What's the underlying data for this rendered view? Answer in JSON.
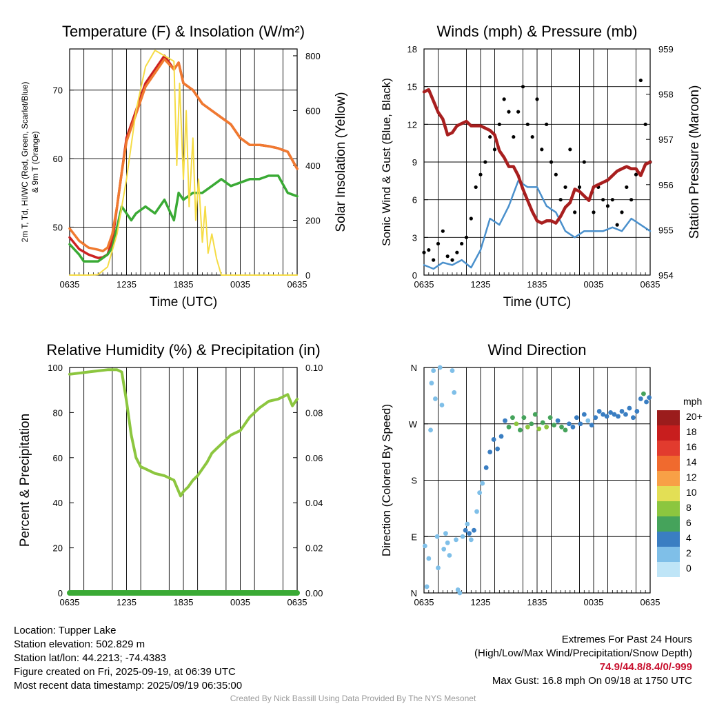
{
  "chart_data": [
    {
      "id": "temp",
      "type": "line",
      "title": "Temperature (F) & Insolation (W/m²)",
      "xlabel": "Time (UTC)",
      "ylabel": "2m T, Td, HI/WC (Red, Green, Scarlet/Blue) & 9m T (Orange)",
      "ylabel_line1": "2m T, Td, HI/WC (Red, Green, Scarlet/Blue)",
      "ylabel_line2": "& 9m T (Orange)",
      "y2label": "Solar Insolation (Yellow)",
      "xticks": [
        "0635",
        "1235",
        "1835",
        "0035",
        "0635"
      ],
      "xlim": [
        0,
        24
      ],
      "ylim": [
        43,
        76
      ],
      "yticks": [
        50,
        60,
        70
      ],
      "y2lim": [
        0,
        825
      ],
      "y2ticks": [
        0,
        200,
        400,
        600,
        800
      ],
      "series": [
        {
          "name": "2m T",
          "color": "#cc2222",
          "axis": "left",
          "x": [
            0,
            1,
            2,
            3,
            3.5,
            4,
            4.5,
            5,
            5.5,
            6,
            7,
            8,
            9,
            10,
            11,
            11.5,
            12,
            13,
            14,
            15,
            16,
            17,
            18,
            19,
            20,
            21,
            22,
            23,
            24
          ],
          "y": [
            48.5,
            46.8,
            46,
            45.5,
            45.6,
            46,
            48,
            53,
            58,
            63,
            67,
            71,
            73,
            75,
            73,
            74,
            71,
            70,
            68,
            67,
            66,
            65,
            63,
            62,
            62,
            61.8,
            61.5,
            61,
            58.5
          ]
        },
        {
          "name": "9m T",
          "color": "#f07a30",
          "axis": "left",
          "x": [
            0,
            1,
            2,
            3,
            3.5,
            4,
            4.5,
            5,
            5.5,
            6,
            7,
            8,
            9,
            10,
            11,
            11.5,
            12,
            13,
            14,
            15,
            16,
            17,
            18,
            19,
            20,
            21,
            22,
            23,
            24
          ],
          "y": [
            49.8,
            48,
            47,
            46.7,
            46.5,
            47,
            49,
            53,
            58,
            62.5,
            66.5,
            70.5,
            72.5,
            74.5,
            73,
            74,
            71,
            70,
            68,
            67,
            66,
            65,
            63,
            62,
            62,
            61.8,
            61.5,
            61,
            58.5
          ]
        },
        {
          "name": "2m Td",
          "color": "#3aaa35",
          "axis": "left",
          "x": [
            0,
            1,
            1.5,
            2,
            3,
            4,
            4.5,
            5,
            5.5,
            6,
            6.5,
            7,
            8,
            9,
            10,
            11,
            11.5,
            12,
            13,
            14,
            15,
            16,
            17,
            18,
            19,
            20,
            21,
            22,
            23,
            24
          ],
          "y": [
            47.5,
            46,
            45,
            45,
            45,
            46,
            47,
            50,
            53,
            52,
            51,
            52,
            53,
            52,
            54,
            51,
            55,
            54,
            55,
            55,
            56,
            57,
            56,
            56.5,
            57,
            57,
            57.5,
            57.5,
            55,
            54.5
          ]
        },
        {
          "name": "Solar Insolation",
          "color": "#f5dc45",
          "axis": "right",
          "x": [
            0,
            2,
            3,
            4,
            5,
            6,
            7,
            8,
            9,
            10,
            11,
            11.3,
            11.6,
            12,
            12.3,
            12.6,
            13,
            13.3,
            13.6,
            14,
            14.3,
            14.6,
            15,
            15.5,
            16,
            17,
            24
          ],
          "y": [
            0,
            0,
            2,
            30,
            150,
            350,
            600,
            760,
            820,
            800,
            780,
            400,
            700,
            350,
            600,
            250,
            500,
            200,
            350,
            120,
            250,
            80,
            150,
            60,
            0,
            0,
            0
          ]
        }
      ]
    },
    {
      "id": "wind",
      "type": "line",
      "title": "Winds (mph) & Pressure (mb)",
      "xlabel": "Time (UTC)",
      "ylabel": "Sonic Wind & Gust (Blue, Black)",
      "y2label": "Station Pressure (Maroon)",
      "xticks": [
        "0635",
        "1235",
        "1835",
        "0035",
        "0635"
      ],
      "xlim": [
        0,
        24
      ],
      "ylim": [
        0,
        18
      ],
      "yticks": [
        0,
        3,
        6,
        9,
        12,
        15,
        18
      ],
      "y2lim": [
        954,
        959
      ],
      "y2ticks": [
        954,
        955,
        956,
        957,
        958,
        959
      ],
      "series": [
        {
          "name": "Sonic Wind",
          "color": "#4a90cc",
          "axis": "left",
          "x": [
            0,
            1,
            2,
            3,
            4,
            5,
            6,
            7,
            8,
            9,
            10,
            11,
            12,
            13,
            14,
            15,
            16,
            17,
            18,
            19,
            20,
            21,
            22,
            23,
            24
          ],
          "y": [
            0.8,
            0.5,
            1,
            0.8,
            1.2,
            0.6,
            2,
            4.5,
            4,
            5.5,
            7.5,
            7,
            7,
            5.5,
            5,
            3.5,
            3,
            3.5,
            3.5,
            3.5,
            3.8,
            3.5,
            4.5,
            4,
            3.5
          ]
        },
        {
          "name": "Gust",
          "color": "#000000",
          "axis": "left",
          "marker": "dot",
          "x": [
            0,
            0.5,
            1,
            1.5,
            2,
            2.5,
            3,
            3.5,
            4,
            4.5,
            5,
            5.5,
            6,
            6.5,
            7,
            7.5,
            8,
            8.5,
            9,
            9.5,
            10,
            10.5,
            11,
            11.5,
            12,
            12.5,
            13,
            13.5,
            14,
            14.5,
            15,
            15.5,
            16,
            16.5,
            17,
            17.5,
            18,
            18.5,
            19,
            19.5,
            20,
            20.5,
            21,
            21.5,
            22,
            22.5,
            23,
            23.5,
            24
          ],
          "y": [
            1.8,
            2,
            1.2,
            2.5,
            3.5,
            1.5,
            1.2,
            1.8,
            2.5,
            3,
            4.5,
            7,
            8,
            9,
            11,
            10,
            12,
            14,
            13,
            11,
            13,
            15,
            12,
            11,
            14,
            10,
            12,
            9,
            8,
            6,
            7,
            10,
            5,
            7,
            9,
            6,
            5,
            7,
            6,
            5.5,
            6,
            4,
            5,
            7,
            6,
            8,
            15.5,
            12,
            9
          ]
        },
        {
          "name": "Station Pressure",
          "color": "#a81f1f",
          "axis": "right",
          "x": [
            0,
            0.5,
            1,
            1.5,
            2,
            2.5,
            3,
            3.5,
            4,
            4.5,
            5,
            5.5,
            6,
            6.5,
            7,
            7.5,
            8,
            8.5,
            9,
            9.5,
            10,
            10.5,
            11,
            11.5,
            12,
            12.5,
            13,
            13.5,
            14,
            14.5,
            15,
            15.5,
            16,
            16.5,
            17,
            17.5,
            18,
            18.5,
            19,
            19.5,
            20,
            20.5,
            21,
            21.5,
            22,
            22.5,
            23,
            23.5,
            24
          ],
          "y": [
            958.05,
            958.1,
            957.85,
            957.6,
            957.45,
            957.1,
            957.15,
            957.3,
            957.35,
            957.4,
            957.3,
            957.3,
            957.3,
            957.25,
            957.2,
            957.1,
            956.75,
            956.6,
            956.4,
            956.4,
            956.2,
            955.9,
            955.65,
            955.4,
            955.2,
            955.15,
            955.2,
            955.2,
            955.15,
            955.3,
            955.5,
            955.6,
            955.9,
            955.85,
            955.75,
            955.65,
            955.95,
            956.0,
            956.05,
            956.1,
            956.2,
            956.3,
            956.35,
            956.4,
            956.35,
            956.35,
            956.2,
            956.45,
            956.5
          ]
        }
      ]
    },
    {
      "id": "rh",
      "type": "line",
      "title": "Relative Humidity (%) & Precipitation (in)",
      "xlabel": "",
      "ylabel": "Percent & Precipitation",
      "xticks": [
        "0635",
        "1235",
        "1835",
        "0035",
        "0635"
      ],
      "xlim": [
        0,
        24
      ],
      "ylim": [
        0,
        100
      ],
      "yticks": [
        0,
        20,
        40,
        60,
        80,
        100
      ],
      "y2lim": [
        0,
        0.1
      ],
      "y2ticks": [
        "0.00",
        "0.02",
        "0.04",
        "0.06",
        "0.08",
        "0.10"
      ],
      "series": [
        {
          "name": "Relative Humidity",
          "color": "#8cc63f",
          "axis": "left",
          "x": [
            0,
            1,
            2,
            3,
            4,
            5,
            5.5,
            6,
            6.5,
            7,
            7.5,
            8,
            9,
            10,
            11,
            11.7,
            12,
            12.5,
            13,
            13.5,
            14,
            14.5,
            15,
            15.5,
            16,
            17,
            18,
            19,
            20,
            21,
            22,
            22.5,
            23,
            23.5,
            24
          ],
          "y": [
            97,
            97.5,
            98,
            98.5,
            99,
            99,
            98,
            85,
            70,
            60,
            56,
            55,
            53,
            52,
            50,
            43,
            45,
            47,
            50,
            52,
            55,
            58,
            62,
            64,
            66,
            70,
            72,
            78,
            82,
            85,
            86,
            87,
            88,
            83,
            86
          ]
        },
        {
          "name": "Precipitation",
          "color": "#3aaa35",
          "axis": "right",
          "x": [
            0,
            24
          ],
          "y": [
            0,
            0
          ]
        }
      ]
    },
    {
      "id": "dir",
      "type": "scatter",
      "title": "Wind Direction",
      "xlabel": "",
      "ylabel": "Direction (Colored By Speed)",
      "xticks": [
        "0635",
        "1235",
        "1835",
        "0035",
        "0635"
      ],
      "xlim": [
        0,
        24
      ],
      "ylim": [
        0,
        360
      ],
      "yticks": [
        "N",
        "E",
        "S",
        "W",
        "N"
      ],
      "colorbar_title": "mph",
      "colorbar_labels": [
        "20+",
        "18",
        "16",
        "14",
        "12",
        "10",
        "8",
        "6",
        "4",
        "2",
        "0"
      ],
      "colorbar_colors": [
        "#9b1c1c",
        "#c81e1e",
        "#e23b2e",
        "#f06a2e",
        "#f8a046",
        "#e3df55",
        "#8cc63f",
        "#45a35b",
        "#3a7ec2",
        "#7fbfe8",
        "#bfe5f7"
      ],
      "points": [
        [
          0.1,
          75,
          1
        ],
        [
          0.3,
          10,
          1
        ],
        [
          0.5,
          55,
          1
        ],
        [
          0.7,
          260,
          1
        ],
        [
          0.8,
          335,
          1
        ],
        [
          1.0,
          355,
          1
        ],
        [
          1.2,
          310,
          1
        ],
        [
          1.4,
          90,
          1
        ],
        [
          1.5,
          40,
          1
        ],
        [
          1.7,
          360,
          1
        ],
        [
          1.9,
          300,
          1
        ],
        [
          2.1,
          70,
          1
        ],
        [
          2.3,
          95,
          2
        ],
        [
          2.5,
          80,
          2
        ],
        [
          2.7,
          60,
          2
        ],
        [
          3.0,
          355,
          1
        ],
        [
          3.2,
          320,
          1
        ],
        [
          3.4,
          85,
          2
        ],
        [
          3.6,
          5,
          1
        ],
        [
          3.8,
          0,
          1
        ],
        [
          4.1,
          90,
          2
        ],
        [
          4.4,
          100,
          3
        ],
        [
          4.6,
          110,
          2
        ],
        [
          4.8,
          95,
          3
        ],
        [
          5.0,
          85,
          2
        ],
        [
          5.3,
          100,
          3
        ],
        [
          5.6,
          130,
          2
        ],
        [
          5.9,
          160,
          2
        ],
        [
          6.2,
          175,
          2
        ],
        [
          6.6,
          200,
          3
        ],
        [
          7.0,
          225,
          3
        ],
        [
          7.4,
          245,
          3
        ],
        [
          7.8,
          230,
          4
        ],
        [
          8.2,
          250,
          4
        ],
        [
          8.6,
          275,
          4
        ],
        [
          9.0,
          265,
          5
        ],
        [
          9.4,
          280,
          6
        ],
        [
          9.8,
          270,
          7
        ],
        [
          10.2,
          260,
          6
        ],
        [
          10.6,
          280,
          5
        ],
        [
          11.0,
          265,
          7
        ],
        [
          11.4,
          270,
          6
        ],
        [
          11.8,
          285,
          5
        ],
        [
          12.2,
          262,
          7
        ],
        [
          12.6,
          272,
          6
        ],
        [
          13.0,
          265,
          7
        ],
        [
          13.4,
          280,
          5
        ],
        [
          13.8,
          268,
          6
        ],
        [
          14.2,
          275,
          4
        ],
        [
          14.6,
          265,
          5
        ],
        [
          15.0,
          260,
          6
        ],
        [
          15.4,
          270,
          4
        ],
        [
          15.8,
          265,
          3
        ],
        [
          16.2,
          280,
          4
        ],
        [
          16.6,
          270,
          3
        ],
        [
          17.0,
          285,
          3
        ],
        [
          17.4,
          275,
          2
        ],
        [
          17.8,
          268,
          3
        ],
        [
          18.2,
          280,
          3
        ],
        [
          18.6,
          290,
          3
        ],
        [
          19.0,
          285,
          3
        ],
        [
          19.4,
          282,
          4
        ],
        [
          19.8,
          288,
          3
        ],
        [
          20.2,
          285,
          3
        ],
        [
          20.6,
          282,
          3
        ],
        [
          21.0,
          290,
          3
        ],
        [
          21.4,
          285,
          4
        ],
        [
          21.8,
          295,
          3
        ],
        [
          22.2,
          280,
          4
        ],
        [
          22.6,
          290,
          4
        ],
        [
          23.0,
          310,
          4
        ],
        [
          23.3,
          318,
          5
        ],
        [
          23.6,
          305,
          4
        ],
        [
          23.9,
          312,
          3
        ]
      ]
    }
  ],
  "info": {
    "location": "Location: Tupper Lake",
    "elevation": "Station elevation: 502.829 m",
    "latlon": "Station lat/lon: 44.2213; -74.4383",
    "created": "Figure created on Fri, 2025-09-19, at 06:39 UTC",
    "recent": "Most recent data timestamp: 2025/09/19 06:35:00"
  },
  "extremes": {
    "title": "Extremes For Past 24 Hours",
    "subtitle": "(High/Low/Max Wind/Precipitation/Snow Depth)",
    "values": "74.9/44.8/8.4/0/-999",
    "gust": "Max Gust: 16.8 mph On 09/18 at 1750 UTC"
  },
  "credit": "Created By Nick Bassill Using Data Provided By The NYS Mesonet"
}
